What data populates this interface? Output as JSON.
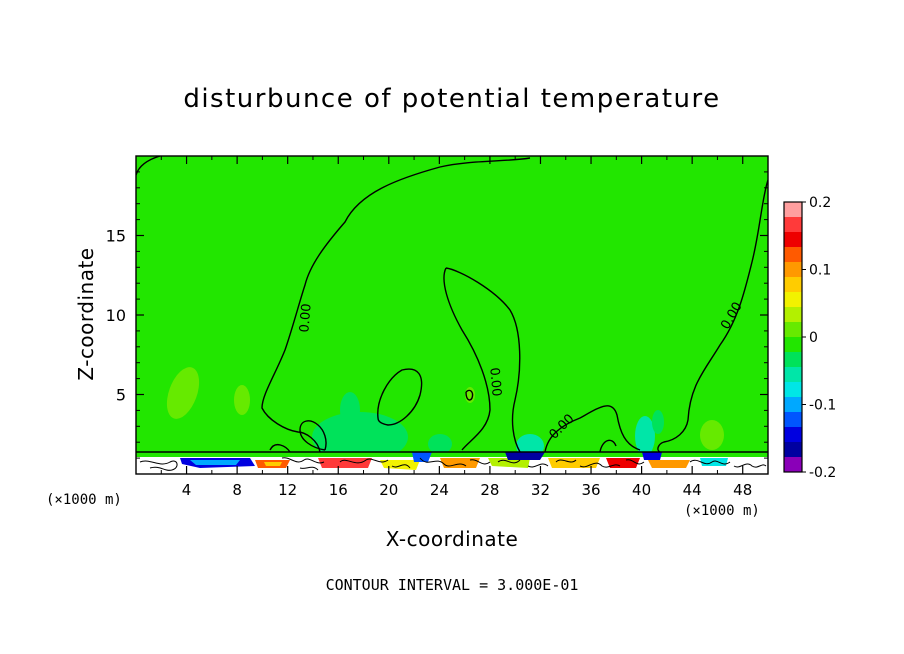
{
  "chart_data": {
    "type": "heatmap",
    "title": "disturbunce of potential temperature",
    "xlabel": "X-coordinate",
    "ylabel": "Z-coordinate",
    "x_unit_label": "(×1000 m)",
    "xlim": [
      0,
      50
    ],
    "ylim": [
      0,
      20
    ],
    "x_ticks": [
      "4",
      "8",
      "12",
      "16",
      "20",
      "24",
      "28",
      "32",
      "36",
      "40",
      "44",
      "48"
    ],
    "y_ticks": [
      "5",
      "10",
      "15"
    ],
    "x_tick_values": [
      4,
      8,
      12,
      16,
      20,
      24,
      28,
      32,
      36,
      40,
      44,
      48
    ],
    "y_tick_values": [
      5,
      10,
      15
    ],
    "colorbar": {
      "range": [
        -0.2,
        0.2
      ],
      "tick_labels": [
        "0.2",
        "0.1",
        "0",
        "-0.1",
        "-0.2"
      ],
      "tick_values": [
        0.2,
        0.1,
        0,
        -0.1,
        -0.2
      ],
      "colors": [
        "#ff9f9f",
        "#ff3a3a",
        "#ee0000",
        "#ff5a00",
        "#ff9900",
        "#ffcc00",
        "#f2f200",
        "#b3f000",
        "#66ea00",
        "#22e600",
        "#00e25a",
        "#00e6a8",
        "#00e6e6",
        "#00a8ff",
        "#0055ff",
        "#0000e0",
        "#0000a0",
        "#8a00b8"
      ]
    },
    "contour_labels": [
      "0.00",
      "0.00",
      "0.00",
      "0.00"
    ],
    "contour_interval_text": "CONTOUR INTERVAL = 3.000E-01",
    "background_value": 0
  }
}
